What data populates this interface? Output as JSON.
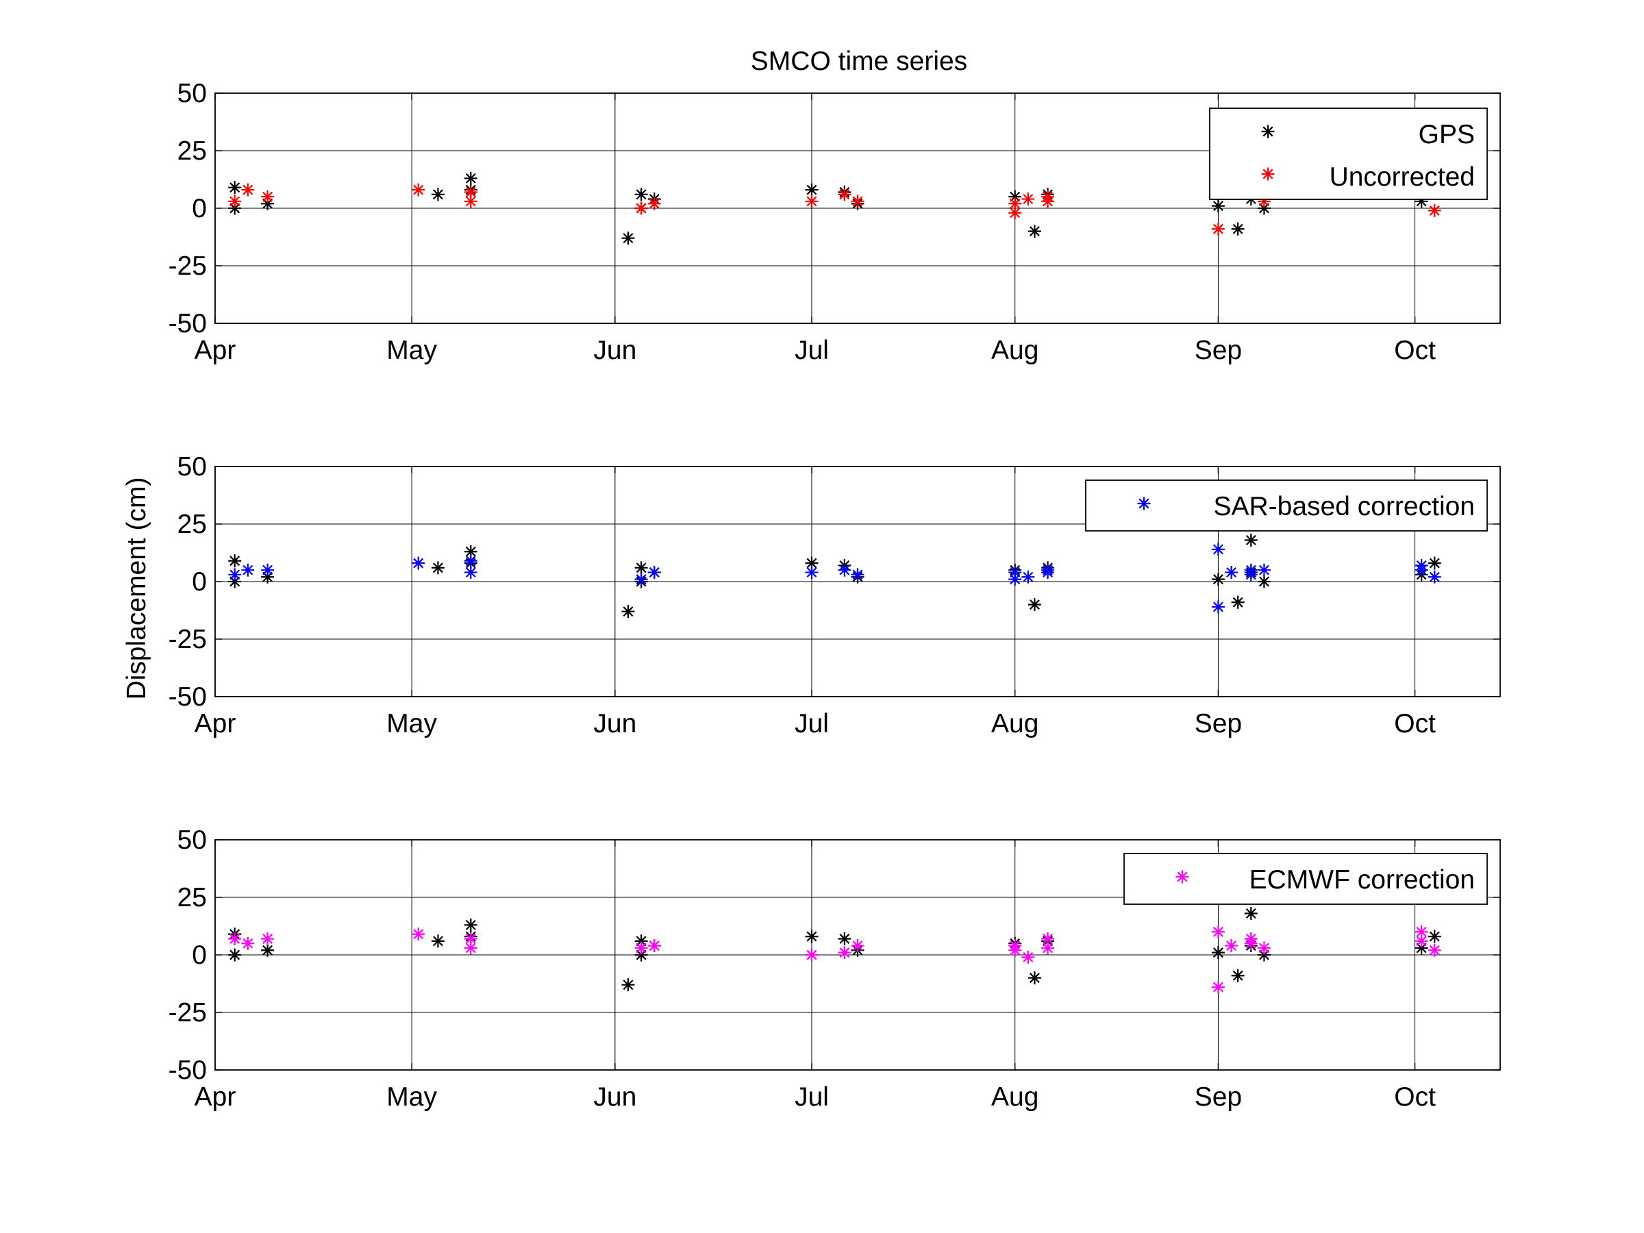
{
  "chart_data": [
    {
      "type": "scatter",
      "title": "SMCO time series",
      "ylabel": "",
      "xlabel": "",
      "x_axis": "date",
      "xlim": [
        "2012-04-01",
        "2012-10-14"
      ],
      "ylim": [
        -50,
        50
      ],
      "yticks": [
        50,
        25,
        0,
        -25,
        -50
      ],
      "xticks": [
        {
          "date": "2012-04-01",
          "label": "Apr"
        },
        {
          "date": "2012-05-01",
          "label": "May"
        },
        {
          "date": "2012-06-01",
          "label": "Jun"
        },
        {
          "date": "2012-07-01",
          "label": "Jul"
        },
        {
          "date": "2012-08-01",
          "label": "Aug"
        },
        {
          "date": "2012-09-01",
          "label": "Sep"
        },
        {
          "date": "2012-10-01",
          "label": "Oct"
        }
      ],
      "grid": true,
      "legend_position": "top-right",
      "series": [
        {
          "name": "GPS",
          "color": "#000000",
          "marker": "asterisk",
          "x": [
            "2012-04-04",
            "2012-04-04",
            "2012-04-09",
            "2012-05-05",
            "2012-05-10",
            "2012-05-10",
            "2012-06-03",
            "2012-06-05",
            "2012-06-05",
            "2012-06-07",
            "2012-07-01",
            "2012-07-06",
            "2012-07-08",
            "2012-08-01",
            "2012-08-04",
            "2012-08-06",
            "2012-09-01",
            "2012-09-04",
            "2012-09-06",
            "2012-09-06",
            "2012-09-08",
            "2012-10-02",
            "2012-10-04"
          ],
          "y": [
            9,
            0,
            2,
            6,
            13,
            8,
            -13,
            6,
            0,
            4,
            8,
            7,
            2,
            5,
            -10,
            6,
            1,
            -9,
            4,
            18,
            0,
            3,
            8
          ]
        },
        {
          "name": "Uncorrected",
          "color": "#ff0000",
          "marker": "asterisk",
          "x": [
            "2012-04-04",
            "2012-04-06",
            "2012-04-09",
            "2012-05-02",
            "2012-05-10",
            "2012-05-10",
            "2012-06-05",
            "2012-06-07",
            "2012-07-01",
            "2012-07-06",
            "2012-07-08",
            "2012-08-01",
            "2012-08-01",
            "2012-08-03",
            "2012-08-06",
            "2012-08-06",
            "2012-09-01",
            "2012-09-08",
            "2012-10-04"
          ],
          "y": [
            3,
            8,
            5,
            8,
            7,
            3,
            0,
            2,
            3,
            6,
            3,
            -2,
            2,
            4,
            5,
            3,
            -9,
            3,
            -1
          ]
        }
      ]
    },
    {
      "type": "scatter",
      "title": "",
      "ylabel": "Displacement (cm)",
      "xlabel": "",
      "x_axis": "date",
      "xlim": [
        "2012-04-01",
        "2012-10-14"
      ],
      "ylim": [
        -50,
        50
      ],
      "yticks": [
        50,
        25,
        0,
        -25,
        -50
      ],
      "xticks": [
        {
          "date": "2012-04-01",
          "label": "Apr"
        },
        {
          "date": "2012-05-01",
          "label": "May"
        },
        {
          "date": "2012-06-01",
          "label": "Jun"
        },
        {
          "date": "2012-07-01",
          "label": "Jul"
        },
        {
          "date": "2012-08-01",
          "label": "Aug"
        },
        {
          "date": "2012-09-01",
          "label": "Sep"
        },
        {
          "date": "2012-10-01",
          "label": "Oct"
        }
      ],
      "grid": true,
      "legend_position": "top-right",
      "series": [
        {
          "name": "",
          "color": "#000000",
          "marker": "asterisk",
          "x": [
            "2012-04-04",
            "2012-04-04",
            "2012-04-09",
            "2012-05-05",
            "2012-05-10",
            "2012-05-10",
            "2012-06-03",
            "2012-06-05",
            "2012-06-05",
            "2012-06-07",
            "2012-07-01",
            "2012-07-06",
            "2012-07-08",
            "2012-08-01",
            "2012-08-04",
            "2012-08-06",
            "2012-09-01",
            "2012-09-04",
            "2012-09-06",
            "2012-09-06",
            "2012-09-08",
            "2012-10-02",
            "2012-10-04"
          ],
          "y": [
            9,
            0,
            2,
            6,
            13,
            8,
            -13,
            6,
            0,
            4,
            8,
            7,
            2,
            5,
            -10,
            6,
            1,
            -9,
            4,
            18,
            0,
            3,
            8
          ]
        },
        {
          "name": "SAR-based correction",
          "color": "#0000ff",
          "marker": "asterisk",
          "x": [
            "2012-04-04",
            "2012-04-06",
            "2012-04-09",
            "2012-05-02",
            "2012-05-10",
            "2012-05-10",
            "2012-06-05",
            "2012-06-07",
            "2012-07-01",
            "2012-07-06",
            "2012-07-08",
            "2012-08-01",
            "2012-08-01",
            "2012-08-03",
            "2012-08-06",
            "2012-08-06",
            "2012-09-01",
            "2012-09-01",
            "2012-09-03",
            "2012-09-06",
            "2012-09-06",
            "2012-09-08",
            "2012-10-02",
            "2012-10-02",
            "2012-10-04"
          ],
          "y": [
            3,
            5,
            5,
            8,
            9,
            4,
            1,
            4,
            4,
            5,
            3,
            4,
            1,
            2,
            5,
            4,
            14,
            -11,
            4,
            5,
            3,
            5,
            7,
            5,
            2
          ]
        }
      ]
    },
    {
      "type": "scatter",
      "title": "",
      "ylabel": "",
      "xlabel": "",
      "x_axis": "date",
      "xlim": [
        "2012-04-01",
        "2012-10-14"
      ],
      "ylim": [
        -50,
        50
      ],
      "yticks": [
        50,
        25,
        0,
        -25,
        -50
      ],
      "xticks": [
        {
          "date": "2012-04-01",
          "label": "Apr"
        },
        {
          "date": "2012-05-01",
          "label": "May"
        },
        {
          "date": "2012-06-01",
          "label": "Jun"
        },
        {
          "date": "2012-07-01",
          "label": "Jul"
        },
        {
          "date": "2012-08-01",
          "label": "Aug"
        },
        {
          "date": "2012-09-01",
          "label": "Sep"
        },
        {
          "date": "2012-10-01",
          "label": "Oct"
        }
      ],
      "grid": true,
      "legend_position": "top-right",
      "series": [
        {
          "name": "",
          "color": "#000000",
          "marker": "asterisk",
          "x": [
            "2012-04-04",
            "2012-04-04",
            "2012-04-09",
            "2012-05-05",
            "2012-05-10",
            "2012-05-10",
            "2012-06-03",
            "2012-06-05",
            "2012-06-05",
            "2012-06-07",
            "2012-07-01",
            "2012-07-06",
            "2012-07-08",
            "2012-08-01",
            "2012-08-04",
            "2012-08-06",
            "2012-09-01",
            "2012-09-04",
            "2012-09-06",
            "2012-09-06",
            "2012-09-08",
            "2012-10-02",
            "2012-10-04"
          ],
          "y": [
            9,
            0,
            2,
            6,
            13,
            8,
            -13,
            6,
            0,
            4,
            8,
            7,
            2,
            5,
            -10,
            6,
            1,
            -9,
            4,
            18,
            0,
            3,
            8
          ]
        },
        {
          "name": "ECMWF correction",
          "color": "#ff00ff",
          "marker": "asterisk",
          "x": [
            "2012-04-04",
            "2012-04-06",
            "2012-04-09",
            "2012-05-02",
            "2012-05-10",
            "2012-05-10",
            "2012-06-05",
            "2012-06-07",
            "2012-07-01",
            "2012-07-06",
            "2012-07-08",
            "2012-08-01",
            "2012-08-01",
            "2012-08-03",
            "2012-08-06",
            "2012-08-06",
            "2012-09-01",
            "2012-09-01",
            "2012-09-03",
            "2012-09-06",
            "2012-09-06",
            "2012-09-08",
            "2012-10-02",
            "2012-10-02",
            "2012-10-04"
          ],
          "y": [
            7,
            5,
            7,
            9,
            7,
            3,
            3,
            4,
            0,
            1,
            4,
            2,
            4,
            -1,
            7,
            3,
            10,
            -14,
            4,
            7,
            5,
            3,
            10,
            6,
            2
          ]
        }
      ]
    }
  ]
}
